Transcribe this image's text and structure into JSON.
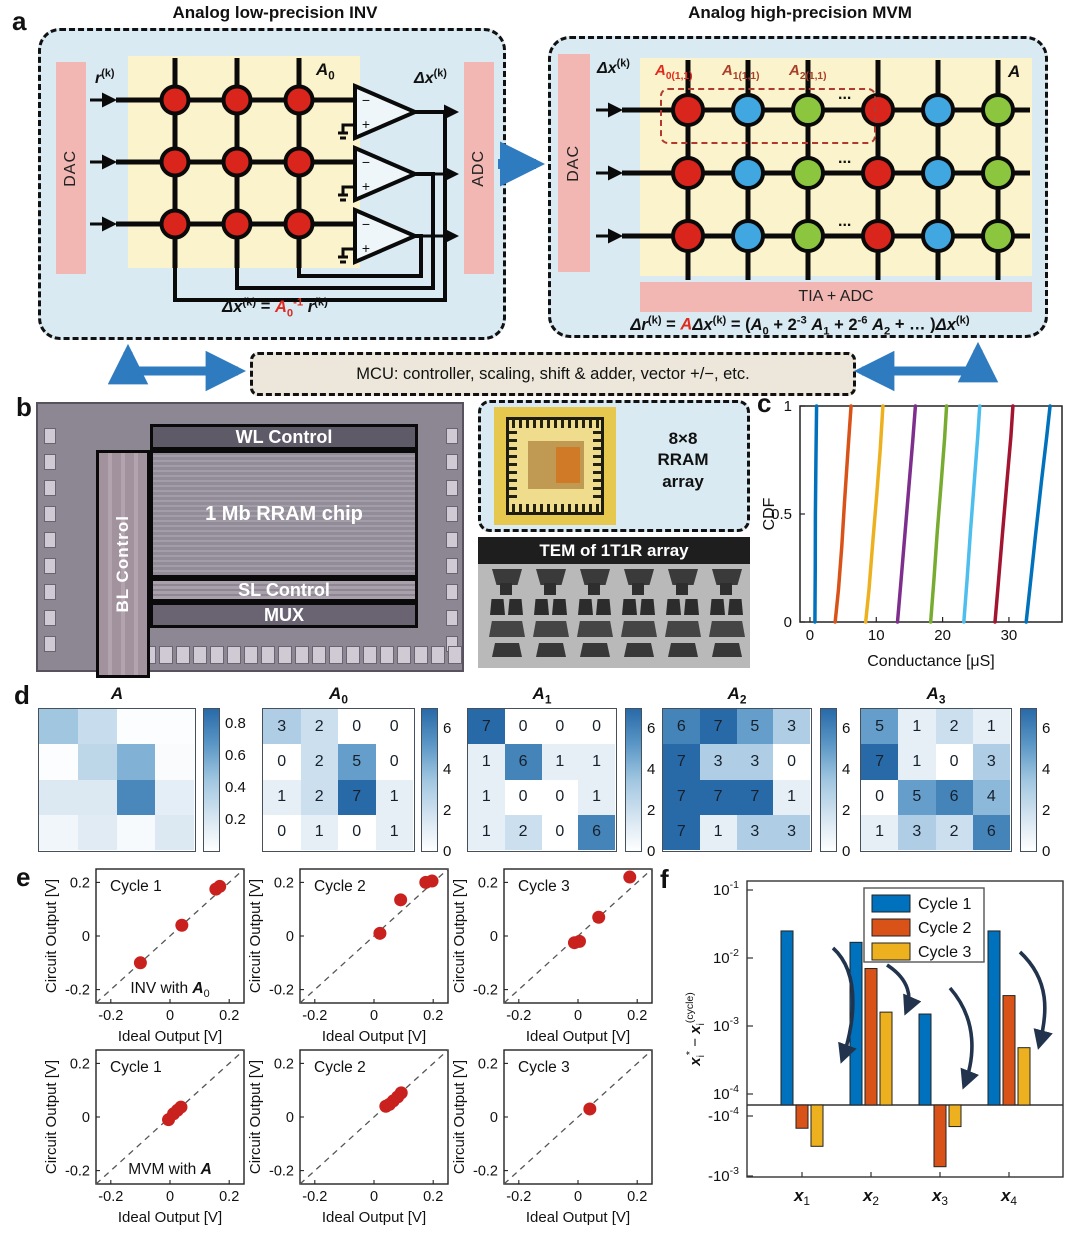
{
  "colors": {
    "panel_blue": "#d9eaf2",
    "array_yellow": "#faf3cb",
    "dac_pink": "#f2b7b3",
    "arrow_blue": "#2e7bbf",
    "cell_red": "#da251c",
    "cell_cyan": "#41a7e0",
    "cell_green": "#8cc63f",
    "wire_black": "#0a0a0a",
    "red_dash": "#b03a2e",
    "scatter_marker": "#c9211e",
    "arrow_navy": "#22344d"
  },
  "panel_a": {
    "label": "a",
    "left": {
      "title": "Analog low-precision INV",
      "dac": "DAC",
      "adc": "ADC",
      "input_label": [
        {
          "t": "r",
          "b": 1,
          "i": 1,
          "sup": "(k)"
        }
      ],
      "matrix_label": [
        {
          "t": "A",
          "b": 1,
          "i": 1,
          "sub": "0"
        }
      ],
      "output_label": [
        {
          "t": "Δx",
          "b": 1,
          "i": 1,
          "sup": "(k)"
        }
      ],
      "equation": [
        {
          "t": "Δx",
          "b": 1,
          "i": 1,
          "sup": "(k)"
        },
        {
          "t": " = ",
          "b": 1
        },
        {
          "t": "A",
          "b": 1,
          "i": 1,
          "c": "#e02a1e",
          "sub": "0",
          "sup": "-1"
        },
        {
          "t": " ",
          "b": 1
        },
        {
          "t": "r",
          "b": 1,
          "i": 1,
          "sup": "(k)"
        }
      ],
      "crossbar": {
        "rows": 3,
        "cols": 3,
        "col_colors": [
          "red",
          "red",
          "red"
        ]
      }
    },
    "right": {
      "title": "Analog high-precision MVM",
      "dac": "DAC",
      "tia": "TIA + ADC",
      "input_label": [
        {
          "t": "Δx",
          "b": 1,
          "i": 1,
          "sup": "(k)"
        }
      ],
      "matrix_label": [
        {
          "t": "A",
          "b": 1,
          "i": 1
        }
      ],
      "dots": "...",
      "slice_labels": [
        [
          {
            "t": "A",
            "b": 1,
            "i": 1,
            "c": "#e02a1e",
            "sub": "0(1,1)"
          }
        ],
        [
          {
            "t": "A",
            "b": 1,
            "i": 1,
            "c": "#a8402a",
            "sub": "1(1,1)"
          }
        ],
        [
          {
            "t": "A",
            "b": 1,
            "i": 1,
            "c": "#a8402a",
            "sub": "2(1,1)"
          }
        ]
      ],
      "equation": [
        {
          "t": "Δr",
          "b": 1,
          "i": 1,
          "sup": "(k)"
        },
        {
          "t": " = ",
          "b": 1
        },
        {
          "t": "A",
          "b": 1,
          "i": 1,
          "c": "#e02a1e"
        },
        {
          "t": "Δx",
          "b": 1,
          "i": 1,
          "sup": "(k)"
        },
        {
          "t": " = (",
          "b": 1
        },
        {
          "t": "A",
          "b": 1,
          "i": 1,
          "sub": "0"
        },
        {
          "t": " + 2",
          "b": 1,
          "sup": "-3"
        },
        {
          "t": " ",
          "b": 1
        },
        {
          "t": "A",
          "b": 1,
          "i": 1,
          "sub": "1"
        },
        {
          "t": " + 2",
          "b": 1,
          "sup": "-6"
        },
        {
          "t": " ",
          "b": 1
        },
        {
          "t": "A",
          "b": 1,
          "i": 1,
          "sub": "2"
        },
        {
          "t": " + … )",
          "b": 1
        },
        {
          "t": "Δx",
          "b": 1,
          "i": 1,
          "sup": "(k)"
        }
      ],
      "crossbar": {
        "rows": 3,
        "cols": 6,
        "col_colors": [
          "red",
          "cyan",
          "green",
          "red",
          "cyan",
          "green"
        ]
      }
    },
    "mcu": {
      "text": "MCU: controller, scaling, shift & adder, vector +/−, etc."
    }
  },
  "panel_b": {
    "label": "b",
    "blocks": {
      "wl": "WL Control",
      "bl": "BL Control",
      "array": "1 Mb RRAM chip",
      "sl": "SL Control",
      "mux": "MUX"
    },
    "inset": {
      "caption_lines": [
        "8×8",
        "RRAM",
        "array"
      ]
    },
    "tem": {
      "caption": "TEM of 1T1R array"
    }
  },
  "panel_c": {
    "label": "c"
  },
  "panel_d": {
    "label": "d"
  },
  "panel_e": {
    "label": "e"
  },
  "panel_f": {
    "label": "f"
  },
  "chart_data": [
    {
      "id": "cdf",
      "type": "line",
      "xlabel": "Conductance [μS]",
      "ylabel": "CDF",
      "xlim": [
        -1.5,
        38
      ],
      "ylim": [
        0,
        1
      ],
      "xticks": [
        0,
        10,
        20,
        30
      ],
      "yticks": [
        0,
        0.5,
        1
      ],
      "grid": false,
      "series": [
        {
          "name": "level1",
          "color": "#0072BD",
          "points": [
            [
              0.75,
              0
            ],
            [
              0.8,
              0.25
            ],
            [
              0.82,
              0.5
            ],
            [
              0.9,
              0.75
            ],
            [
              1.0,
              1
            ]
          ]
        },
        {
          "name": "level2",
          "color": "#D95319",
          "points": [
            [
              3.8,
              0
            ],
            [
              4.3,
              0.15
            ],
            [
              4.8,
              0.35
            ],
            [
              5.2,
              0.55
            ],
            [
              5.7,
              0.78
            ],
            [
              6.2,
              1
            ]
          ]
        },
        {
          "name": "level3",
          "color": "#EDB120",
          "points": [
            [
              8.4,
              0
            ],
            [
              8.9,
              0.15
            ],
            [
              9.5,
              0.38
            ],
            [
              10.1,
              0.6
            ],
            [
              10.6,
              0.8
            ],
            [
              11.0,
              1
            ]
          ]
        },
        {
          "name": "level4",
          "color": "#7E2F8E",
          "points": [
            [
              13.2,
              0
            ],
            [
              13.7,
              0.18
            ],
            [
              14.3,
              0.4
            ],
            [
              14.9,
              0.62
            ],
            [
              15.5,
              0.84
            ],
            [
              15.9,
              1
            ]
          ]
        },
        {
          "name": "level5",
          "color": "#77AC30",
          "points": [
            [
              18.2,
              0
            ],
            [
              18.7,
              0.2
            ],
            [
              19.2,
              0.42
            ],
            [
              19.8,
              0.65
            ],
            [
              20.3,
              0.85
            ],
            [
              20.6,
              1
            ]
          ]
        },
        {
          "name": "level6",
          "color": "#4DBEEE",
          "points": [
            [
              23.2,
              0
            ],
            [
              23.7,
              0.2
            ],
            [
              24.2,
              0.42
            ],
            [
              24.8,
              0.66
            ],
            [
              25.3,
              0.86
            ],
            [
              25.6,
              1
            ]
          ]
        },
        {
          "name": "level7",
          "color": "#A2142F",
          "points": [
            [
              27.9,
              0
            ],
            [
              28.4,
              0.18
            ],
            [
              29.0,
              0.4
            ],
            [
              29.7,
              0.65
            ],
            [
              30.3,
              0.86
            ],
            [
              30.6,
              1
            ]
          ]
        },
        {
          "name": "level8",
          "color": "#0072BD",
          "points": [
            [
              32.6,
              0
            ],
            [
              33.2,
              0.17
            ],
            [
              34.0,
              0.4
            ],
            [
              34.9,
              0.65
            ],
            [
              35.7,
              0.86
            ],
            [
              36.2,
              1
            ]
          ]
        }
      ]
    },
    {
      "id": "heatmaps",
      "type": "heatmap",
      "maps": [
        {
          "title": [
            {
              "t": "A",
              "b": 1,
              "i": 1
            }
          ],
          "vmax": 0.9,
          "ticks": [
            0.2,
            0.4,
            0.6,
            0.8
          ],
          "show_values": false,
          "values": [
            [
              0.45,
              0.28,
              0.02,
              0.02
            ],
            [
              0.02,
              0.32,
              0.55,
              0.03
            ],
            [
              0.18,
              0.18,
              0.75,
              0.14
            ],
            [
              0.07,
              0.16,
              0.04,
              0.18
            ]
          ]
        },
        {
          "title": [
            {
              "t": "A",
              "b": 1,
              "i": 1,
              "sub": "0"
            }
          ],
          "vmax": 7,
          "ticks": [
            0,
            2,
            4,
            6
          ],
          "show_values": true,
          "values": [
            [
              3,
              2,
              0,
              0
            ],
            [
              0,
              2,
              5,
              0
            ],
            [
              1,
              2,
              7,
              1
            ],
            [
              0,
              1,
              0,
              1
            ]
          ]
        },
        {
          "title": [
            {
              "t": "A",
              "b": 1,
              "i": 1,
              "sub": "1"
            }
          ],
          "vmax": 7,
          "ticks": [
            0,
            2,
            4,
            6
          ],
          "show_values": true,
          "values": [
            [
              7,
              0,
              0,
              0
            ],
            [
              1,
              6,
              1,
              1
            ],
            [
              1,
              0,
              0,
              1
            ],
            [
              1,
              2,
              0,
              6
            ]
          ]
        },
        {
          "title": [
            {
              "t": "A",
              "b": 1,
              "i": 1,
              "sub": "2"
            }
          ],
          "vmax": 7,
          "ticks": [
            0,
            2,
            4,
            6
          ],
          "show_values": true,
          "values": [
            [
              6,
              7,
              5,
              3
            ],
            [
              7,
              3,
              3,
              0
            ],
            [
              7,
              7,
              7,
              1
            ],
            [
              7,
              1,
              3,
              3
            ]
          ]
        },
        {
          "title": [
            {
              "t": "A",
              "b": 1,
              "i": 1,
              "sub": "3"
            }
          ],
          "vmax": 7,
          "ticks": [
            0,
            2,
            4,
            6
          ],
          "show_values": true,
          "values": [
            [
              5,
              1,
              2,
              1
            ],
            [
              7,
              1,
              0,
              3
            ],
            [
              0,
              5,
              6,
              4
            ],
            [
              1,
              3,
              2,
              6
            ]
          ]
        }
      ]
    },
    {
      "id": "scatter_grid",
      "type": "scatter",
      "xlabel": "Ideal Output [V]",
      "ylabel": "Circuit Output [V]",
      "lim": [
        -0.25,
        0.25
      ],
      "ticks": [
        -0.2,
        0,
        0.2
      ],
      "marker_color": "#c9211e",
      "plots": [
        {
          "label": "Cycle 1",
          "note": [
            {
              "t": "INV with "
            },
            {
              "t": "A",
              "b": 1,
              "i": 1,
              "sub": "0"
            }
          ],
          "points": [
            [
              -0.1,
              -0.1
            ],
            [
              0.04,
              0.04
            ],
            [
              0.155,
              0.175
            ],
            [
              0.168,
              0.185
            ]
          ]
        },
        {
          "label": "Cycle 2",
          "note": null,
          "points": [
            [
              0.02,
              0.01
            ],
            [
              0.09,
              0.135
            ],
            [
              0.175,
              0.2
            ],
            [
              0.196,
              0.205
            ]
          ]
        },
        {
          "label": "Cycle 3",
          "note": null,
          "points": [
            [
              -0.012,
              -0.025
            ],
            [
              0.005,
              -0.02
            ],
            [
              0.07,
              0.07
            ],
            [
              0.175,
              0.22
            ]
          ]
        },
        {
          "label": "Cycle 1",
          "note": [
            {
              "t": "MVM with "
            },
            {
              "t": "A",
              "b": 1,
              "i": 1
            }
          ],
          "points": [
            [
              -0.005,
              -0.01
            ],
            [
              0.012,
              0.012
            ],
            [
              0.025,
              0.025
            ],
            [
              0.037,
              0.037
            ]
          ]
        },
        {
          "label": "Cycle 2",
          "note": null,
          "points": [
            [
              0.04,
              0.04
            ],
            [
              0.052,
              0.047
            ],
            [
              0.065,
              0.06
            ],
            [
              0.08,
              0.075
            ],
            [
              0.092,
              0.09
            ]
          ]
        },
        {
          "label": "Cycle 3",
          "note": null,
          "points": [
            [
              0.04,
              0.03
            ]
          ]
        }
      ]
    },
    {
      "id": "error_bars",
      "type": "bar",
      "scale": "symlog",
      "linthresh": 0.0001,
      "ylabel": [
        {
          "t": "x",
          "b": 1,
          "i": 1,
          "sub": "i",
          "sup": "*"
        },
        {
          "t": " − "
        },
        {
          "t": "x",
          "b": 1,
          "i": 1,
          "sub": "i",
          "sup": "(cycle)"
        }
      ],
      "categories": [
        [
          {
            "t": "x",
            "b": 1,
            "i": 1,
            "sub": "1"
          }
        ],
        [
          {
            "t": "x",
            "b": 1,
            "i": 1,
            "sub": "2"
          }
        ],
        [
          {
            "t": "x",
            "b": 1,
            "i": 1,
            "sub": "3"
          }
        ],
        [
          {
            "t": "x",
            "b": 1,
            "i": 1,
            "sub": "4"
          }
        ]
      ],
      "yticks": [
        {
          "v": 0.1,
          "parts": [
            {
              "t": "10",
              "sup": "-1"
            }
          ]
        },
        {
          "v": 0.01,
          "parts": [
            {
              "t": "10",
              "sup": "-2"
            }
          ]
        },
        {
          "v": 0.001,
          "parts": [
            {
              "t": "10",
              "sup": "-3"
            }
          ]
        },
        {
          "v": 0.0001,
          "parts": [
            {
              "t": "10",
              "sup": "-4"
            }
          ]
        },
        {
          "v": -0.0001,
          "parts": [
            {
              "t": "-10",
              "sup": "-4"
            }
          ]
        },
        {
          "v": -0.001,
          "parts": [
            {
              "t": "-10",
              "sup": "-3"
            }
          ]
        }
      ],
      "legend": [
        "Cycle 1",
        "Cycle 2",
        "Cycle 3"
      ],
      "series": [
        {
          "name": "Cycle 1",
          "color": "#0072BD",
          "values": [
            0.025,
            0.017,
            0.0015,
            0.025
          ]
        },
        {
          "name": "Cycle 2",
          "color": "#D95319",
          "values": [
            -0.00016,
            0.007,
            -0.0007,
            0.0028
          ]
        },
        {
          "name": "Cycle 3",
          "color": "#EDB120",
          "values": [
            -0.00032,
            0.0016,
            -0.00015,
            0.00048
          ]
        }
      ]
    }
  ]
}
